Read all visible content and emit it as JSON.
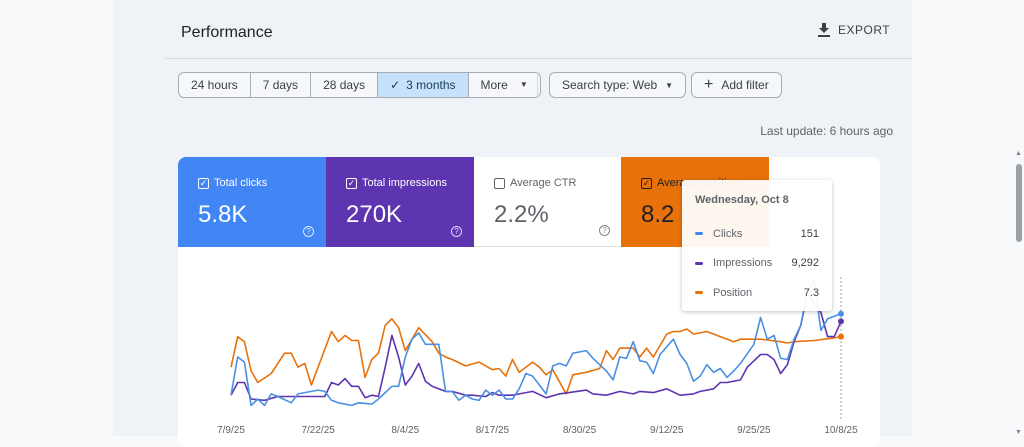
{
  "header": {
    "title": "Performance",
    "export_label": "EXPORT"
  },
  "filters": {
    "date_ranges": [
      "24 hours",
      "7 days",
      "28 days",
      "3 months",
      "More"
    ],
    "selected": "3 months",
    "search_type": "Search type: Web",
    "add_filter": "Add filter"
  },
  "last_update": "Last update: 6 hours ago",
  "metrics": [
    {
      "label": "Total clicks",
      "value": "5.8K",
      "checked": true,
      "color": "#4285f4"
    },
    {
      "label": "Total impressions",
      "value": "270K",
      "checked": true,
      "color": "#5e35b1"
    },
    {
      "label": "Average CTR",
      "value": "2.2%",
      "checked": false,
      "color": "#ffffff"
    },
    {
      "label": "Average position",
      "value": "8.2",
      "checked": true,
      "color": "#e8710a"
    }
  ],
  "tooltip": {
    "date": "Wednesday, Oct 8",
    "rows": [
      {
        "label": "Clicks",
        "value": "151",
        "color": "#4285f4"
      },
      {
        "label": "Impressions",
        "value": "9,292",
        "color": "#5e35b1"
      },
      {
        "label": "Position",
        "value": "7.3",
        "color": "#e8710a"
      }
    ]
  },
  "chart_data": {
    "type": "line",
    "x_unit": "day index from 7/9/25",
    "xlim": [
      0,
      91
    ],
    "ylim": [
      0,
      110
    ],
    "x_ticks": [
      {
        "day": 0,
        "label": "7/9/25"
      },
      {
        "day": 13,
        "label": "7/22/25"
      },
      {
        "day": 26,
        "label": "8/4/25"
      },
      {
        "day": 39,
        "label": "8/17/25"
      },
      {
        "day": 52,
        "label": "8/30/25"
      },
      {
        "day": 65,
        "label": "9/12/25"
      },
      {
        "day": 78,
        "label": "9/25/25"
      },
      {
        "day": 91,
        "label": "10/8/25"
      }
    ],
    "hover_day": 91,
    "series": [
      {
        "name": "Position",
        "color": "#e8710a",
        "points": [
          [
            0,
            36
          ],
          [
            1,
            60
          ],
          [
            2,
            56
          ],
          [
            3,
            33
          ],
          [
            4,
            24
          ],
          [
            6,
            31
          ],
          [
            8,
            47
          ],
          [
            9,
            47
          ],
          [
            10,
            36
          ],
          [
            11,
            39
          ],
          [
            12,
            22
          ],
          [
            15,
            64
          ],
          [
            16,
            56
          ],
          [
            17,
            61
          ],
          [
            18,
            57
          ],
          [
            19,
            57
          ],
          [
            20,
            28
          ],
          [
            21,
            42
          ],
          [
            22,
            47
          ],
          [
            23,
            69
          ],
          [
            24,
            74
          ],
          [
            25,
            67
          ],
          [
            26,
            49
          ],
          [
            28,
            67
          ],
          [
            30,
            56
          ],
          [
            31,
            47
          ],
          [
            32,
            44
          ],
          [
            33,
            42
          ],
          [
            35,
            37
          ],
          [
            37,
            40
          ],
          [
            39,
            34
          ],
          [
            40,
            35
          ],
          [
            41,
            29
          ],
          [
            42,
            42
          ],
          [
            43,
            32
          ],
          [
            45,
            40
          ],
          [
            46,
            36
          ],
          [
            47,
            30
          ],
          [
            48,
            34
          ],
          [
            50,
            15
          ],
          [
            51,
            30
          ],
          [
            53,
            32
          ],
          [
            55,
            35
          ],
          [
            56,
            49
          ],
          [
            57,
            42
          ],
          [
            58,
            51
          ],
          [
            60,
            51
          ],
          [
            61,
            44
          ],
          [
            62,
            51
          ],
          [
            63,
            44
          ],
          [
            65,
            62
          ],
          [
            66,
            64
          ],
          [
            67,
            64
          ],
          [
            68,
            66
          ],
          [
            69,
            62
          ],
          [
            71,
            64
          ],
          [
            73,
            60
          ],
          [
            75,
            56
          ],
          [
            76,
            58
          ],
          [
            79,
            58
          ],
          [
            82,
            56
          ],
          [
            83,
            55
          ],
          [
            84,
            56
          ],
          [
            87,
            57
          ],
          [
            90,
            59
          ],
          [
            91,
            60
          ]
        ]
      },
      {
        "name": "Impressions",
        "color": "#5e35b1",
        "points": [
          [
            0,
            14
          ],
          [
            1,
            24
          ],
          [
            2,
            24
          ],
          [
            3,
            11
          ],
          [
            5,
            10
          ],
          [
            7,
            13
          ],
          [
            9,
            13
          ],
          [
            12,
            13
          ],
          [
            14,
            13
          ],
          [
            15,
            24
          ],
          [
            16,
            22
          ],
          [
            17,
            27
          ],
          [
            18,
            21
          ],
          [
            19,
            21
          ],
          [
            20,
            12
          ],
          [
            21,
            14
          ],
          [
            22,
            13
          ],
          [
            23,
            36
          ],
          [
            24,
            61
          ],
          [
            25,
            44
          ],
          [
            26,
            22
          ],
          [
            27,
            29
          ],
          [
            28,
            39
          ],
          [
            29,
            25
          ],
          [
            30,
            21
          ],
          [
            32,
            17
          ],
          [
            33,
            17
          ],
          [
            35,
            14
          ],
          [
            36,
            14
          ],
          [
            38,
            13
          ],
          [
            39,
            16
          ],
          [
            40,
            14
          ],
          [
            42,
            14
          ],
          [
            43,
            15
          ],
          [
            45,
            17
          ],
          [
            47,
            12
          ],
          [
            49,
            15
          ],
          [
            53,
            18
          ],
          [
            54,
            15
          ],
          [
            56,
            14
          ],
          [
            58,
            17
          ],
          [
            60,
            15
          ],
          [
            61,
            17
          ],
          [
            63,
            16
          ],
          [
            65,
            19
          ],
          [
            67,
            14
          ],
          [
            69,
            15
          ],
          [
            70,
            17
          ],
          [
            72,
            19
          ],
          [
            73,
            24
          ],
          [
            74,
            24
          ],
          [
            76,
            26
          ],
          [
            77,
            36
          ],
          [
            79,
            46
          ],
          [
            80,
            46
          ],
          [
            81,
            42
          ],
          [
            82,
            31
          ],
          [
            83,
            38
          ],
          [
            84,
            56
          ],
          [
            85,
            69
          ],
          [
            86,
            94
          ],
          [
            88,
            79
          ],
          [
            89,
            60
          ],
          [
            90,
            60
          ],
          [
            91,
            72
          ]
        ]
      },
      {
        "name": "Clicks",
        "color": "#4a90e2",
        "points": [
          [
            0,
            14
          ],
          [
            1,
            44
          ],
          [
            2,
            40
          ],
          [
            3,
            6
          ],
          [
            4,
            11
          ],
          [
            5,
            6
          ],
          [
            6,
            15
          ],
          [
            7,
            13
          ],
          [
            9,
            8
          ],
          [
            10,
            15
          ],
          [
            12,
            17
          ],
          [
            13,
            18
          ],
          [
            14,
            17
          ],
          [
            15,
            10
          ],
          [
            16,
            8
          ],
          [
            18,
            6
          ],
          [
            19,
            8
          ],
          [
            21,
            7
          ],
          [
            22,
            11
          ],
          [
            24,
            21
          ],
          [
            25,
            21
          ],
          [
            26,
            44
          ],
          [
            27,
            58
          ],
          [
            28,
            63
          ],
          [
            29,
            54
          ],
          [
            31,
            54
          ],
          [
            32,
            17
          ],
          [
            33,
            17
          ],
          [
            34,
            10
          ],
          [
            35,
            14
          ],
          [
            36,
            11
          ],
          [
            37,
            10
          ],
          [
            38,
            18
          ],
          [
            39,
            14
          ],
          [
            40,
            18
          ],
          [
            41,
            11
          ],
          [
            42,
            11
          ],
          [
            43,
            19
          ],
          [
            44,
            31
          ],
          [
            45,
            29
          ],
          [
            47,
            15
          ],
          [
            48,
            37
          ],
          [
            49,
            39
          ],
          [
            50,
            37
          ],
          [
            51,
            47
          ],
          [
            53,
            49
          ],
          [
            54,
            43
          ],
          [
            56,
            33
          ],
          [
            57,
            26
          ],
          [
            58,
            44
          ],
          [
            59,
            43
          ],
          [
            60,
            56
          ],
          [
            61,
            41
          ],
          [
            62,
            40
          ],
          [
            63,
            31
          ],
          [
            64,
            46
          ],
          [
            66,
            58
          ],
          [
            67,
            46
          ],
          [
            68,
            39
          ],
          [
            69,
            25
          ],
          [
            70,
            29
          ],
          [
            71,
            38
          ],
          [
            72,
            32
          ],
          [
            73,
            35
          ],
          [
            74,
            28
          ],
          [
            75,
            33
          ],
          [
            76,
            39
          ],
          [
            78,
            54
          ],
          [
            79,
            75
          ],
          [
            80,
            58
          ],
          [
            81,
            61
          ],
          [
            82,
            43
          ],
          [
            83,
            42
          ],
          [
            84,
            58
          ],
          [
            85,
            69
          ],
          [
            86,
            96
          ],
          [
            87,
            104
          ],
          [
            88,
            65
          ],
          [
            89,
            74
          ],
          [
            91,
            78
          ]
        ]
      }
    ]
  }
}
